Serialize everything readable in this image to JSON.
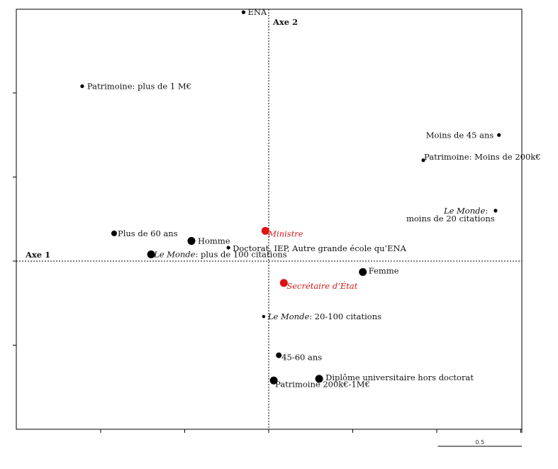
{
  "chart_data": {
    "type": "scatter",
    "axis1_label": "Axe 1",
    "axis2_label": "Axe 2",
    "xlim": [
      -1.5,
      1.5
    ],
    "ylim": [
      -1.0,
      1.5
    ],
    "scale_bar": {
      "length": 0.5,
      "label": "0.5"
    },
    "colors": {
      "default": "#000000",
      "highlight": "#e01010"
    },
    "points": [
      {
        "id": "ena",
        "label": "ENA",
        "x": -0.15,
        "y": 1.48,
        "size": "small",
        "color": "default"
      },
      {
        "id": "patrimoine-1m",
        "label": "Patrimoine: plus de 1 M€",
        "x": -1.11,
        "y": 1.04,
        "size": "small",
        "color": "default"
      },
      {
        "id": "moins-45",
        "label": "Moins de 45 ans",
        "x": 1.37,
        "y": 0.75,
        "size": "small",
        "color": "default"
      },
      {
        "id": "patrimoine-200k",
        "label": "Patrimoine: Moins de 200k€",
        "x": 0.92,
        "y": 0.6,
        "size": "small",
        "color": "default"
      },
      {
        "id": "lemonde-moins20",
        "label_italic": "Le Monde",
        "label_line1": ":",
        "label_line2": "moins de 20 citations",
        "x": 1.35,
        "y": 0.3,
        "size": "small",
        "color": "default"
      },
      {
        "id": "ministre",
        "label": "Ministre",
        "x": -0.02,
        "y": 0.18,
        "size": "large",
        "color": "highlight",
        "italic": true
      },
      {
        "id": "plus-60",
        "label": "Plus de 60 ans",
        "x": -0.92,
        "y": 0.165,
        "size": "medium",
        "color": "default"
      },
      {
        "id": "homme",
        "label": "Homme",
        "x": -0.46,
        "y": 0.12,
        "size": "large",
        "color": "default"
      },
      {
        "id": "doctorat",
        "label": "Doctorat, IEP, Autre grande école qu’ENA",
        "x": -0.24,
        "y": 0.08,
        "size": "small",
        "color": "default"
      },
      {
        "id": "lemonde-plus100",
        "label_italic": "Le Monde",
        "label_rest": ": plus de 100 citations",
        "x": -0.7,
        "y": 0.04,
        "size": "large",
        "color": "default"
      },
      {
        "id": "femme",
        "label": "Femme",
        "x": 0.56,
        "y": -0.065,
        "size": "large",
        "color": "default"
      },
      {
        "id": "secretaire",
        "label": "Secrétaire d’État",
        "x": 0.09,
        "y": -0.13,
        "size": "large",
        "color": "highlight",
        "italic": true
      },
      {
        "id": "lemonde-20-100",
        "label_italic": "Le Monde",
        "label_rest": ": 20-100 citations",
        "x": -0.03,
        "y": -0.33,
        "size": "tiny",
        "color": "default"
      },
      {
        "id": "age-45-60",
        "label": "45-60 ans",
        "x": 0.06,
        "y": -0.56,
        "size": "medium",
        "color": "default"
      },
      {
        "id": "diplome-univ",
        "label": "Diplôme universitaire hors doctorat",
        "x": 0.3,
        "y": -0.7,
        "size": "large",
        "color": "default"
      },
      {
        "id": "patrimoine-200k-1m",
        "label": "Patrimoine 200k€-1M€",
        "x": 0.03,
        "y": -0.71,
        "size": "large",
        "color": "default"
      }
    ]
  }
}
